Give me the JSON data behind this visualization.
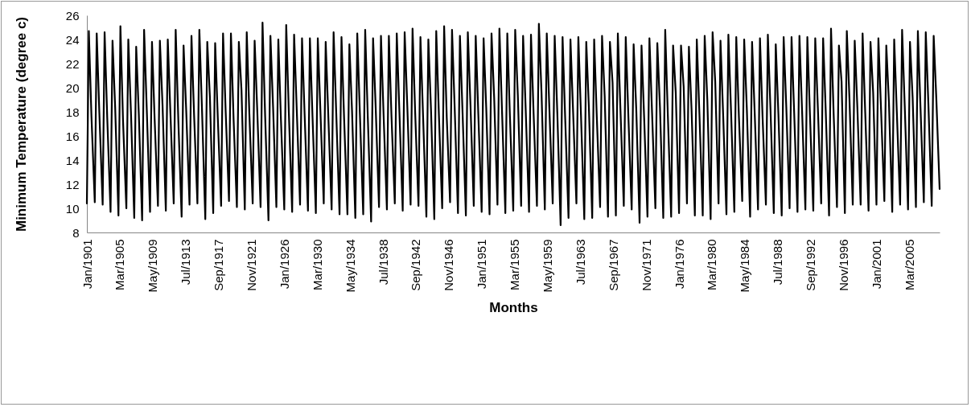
{
  "chart_data": {
    "type": "line",
    "xlabel": "Months",
    "ylabel": "Minimum Temperature (degree c)",
    "xlim": [
      "1901-01",
      "2009-01"
    ],
    "xticks": [
      {
        "value": "1901-01",
        "label": "Jan/1901"
      },
      {
        "value": "1905-03",
        "label": "Mar/1905"
      },
      {
        "value": "1909-05",
        "label": "May/1909"
      },
      {
        "value": "1913-07",
        "label": "Jul/1913"
      },
      {
        "value": "1917-09",
        "label": "Sep/1917"
      },
      {
        "value": "1921-11",
        "label": "Nov/1921"
      },
      {
        "value": "1926-01",
        "label": "Jan/1926"
      },
      {
        "value": "1930-03",
        "label": "Mar/1930"
      },
      {
        "value": "1934-05",
        "label": "May/1934"
      },
      {
        "value": "1938-07",
        "label": "Jul/1938"
      },
      {
        "value": "1942-09",
        "label": "Sep/1942"
      },
      {
        "value": "1946-11",
        "label": "Nov/1946"
      },
      {
        "value": "1951-01",
        "label": "Jan/1951"
      },
      {
        "value": "1955-03",
        "label": "Mar/1955"
      },
      {
        "value": "1959-05",
        "label": "May/1959"
      },
      {
        "value": "1963-07",
        "label": "Jul/1963"
      },
      {
        "value": "1967-09",
        "label": "Sep/1967"
      },
      {
        "value": "1971-11",
        "label": "Nov/1971"
      },
      {
        "value": "1976-01",
        "label": "Jan/1976"
      },
      {
        "value": "1980-03",
        "label": "Mar/1980"
      },
      {
        "value": "1984-05",
        "label": "May/1984"
      },
      {
        "value": "1988-07",
        "label": "Jul/1988"
      },
      {
        "value": "1992-09",
        "label": "Sep/1992"
      },
      {
        "value": "1996-11",
        "label": "Nov/1996"
      },
      {
        "value": "2001-01",
        "label": "Jan/2001"
      },
      {
        "value": "2005-03",
        "label": "Mar/2005"
      }
    ],
    "ylim": [
      8,
      26
    ],
    "yticks": [
      8,
      10,
      12,
      14,
      16,
      18,
      20,
      22,
      24,
      26
    ],
    "x": [
      "1901-01",
      "1901-04",
      "1901-08",
      "1902-01",
      "1902-04",
      "1902-08",
      "1903-01",
      "1903-04",
      "1903-08",
      "1904-01",
      "1904-04",
      "1904-08",
      "1905-01",
      "1905-04",
      "1905-08",
      "1906-01",
      "1906-04",
      "1906-08",
      "1907-01",
      "1907-04",
      "1907-08",
      "1908-01",
      "1908-04",
      "1908-08",
      "1909-01",
      "1909-04",
      "1909-08",
      "1910-01",
      "1910-04",
      "1910-08",
      "1911-01",
      "1911-04",
      "1911-08",
      "1912-01",
      "1912-04",
      "1912-08",
      "1913-01",
      "1913-04",
      "1913-08",
      "1914-01",
      "1914-04",
      "1914-08",
      "1915-01",
      "1915-04",
      "1915-08",
      "1916-01",
      "1916-04",
      "1916-08",
      "1917-01",
      "1917-04",
      "1917-08",
      "1918-01",
      "1918-04",
      "1918-08",
      "1919-01",
      "1919-04",
      "1919-08",
      "1920-01",
      "1920-04",
      "1920-08",
      "1921-01",
      "1921-04",
      "1921-08",
      "1922-01",
      "1922-04",
      "1922-08",
      "1923-01",
      "1923-04",
      "1923-08",
      "1924-01",
      "1924-04",
      "1924-08",
      "1925-01",
      "1925-04",
      "1925-08",
      "1926-01",
      "1926-04",
      "1926-08",
      "1927-01",
      "1927-04",
      "1927-08",
      "1928-01",
      "1928-04",
      "1928-08",
      "1929-01",
      "1929-04",
      "1929-08",
      "1930-01",
      "1930-04",
      "1930-08",
      "1931-01",
      "1931-04",
      "1931-08",
      "1932-01",
      "1932-04",
      "1932-08",
      "1933-01",
      "1933-04",
      "1933-08",
      "1934-01",
      "1934-04",
      "1934-08",
      "1935-01",
      "1935-04",
      "1935-08",
      "1936-01",
      "1936-04",
      "1936-08",
      "1937-01",
      "1937-04",
      "1937-08",
      "1938-01",
      "1938-04",
      "1938-08",
      "1939-01",
      "1939-04",
      "1939-08",
      "1940-01",
      "1940-04",
      "1940-08",
      "1941-01",
      "1941-04",
      "1941-08",
      "1942-01",
      "1942-04",
      "1942-08",
      "1943-01",
      "1943-04",
      "1943-08",
      "1944-01",
      "1944-04",
      "1944-08",
      "1945-01",
      "1945-04",
      "1945-08",
      "1946-01",
      "1946-04",
      "1946-08",
      "1947-01",
      "1947-04",
      "1947-08",
      "1948-01",
      "1948-04",
      "1948-08",
      "1949-01",
      "1949-04",
      "1949-08",
      "1950-01",
      "1950-04",
      "1950-08",
      "1951-01",
      "1951-04",
      "1951-08",
      "1952-01",
      "1952-04",
      "1952-08",
      "1953-01",
      "1953-04",
      "1953-08",
      "1954-01",
      "1954-04",
      "1954-08",
      "1955-01",
      "1955-04",
      "1955-08",
      "1956-01",
      "1956-04",
      "1956-08",
      "1957-01",
      "1957-04",
      "1957-08",
      "1958-01",
      "1958-04",
      "1958-08",
      "1959-01",
      "1959-04",
      "1959-08",
      "1960-01",
      "1960-04",
      "1960-08",
      "1961-01",
      "1961-04",
      "1961-08",
      "1962-01",
      "1962-04",
      "1962-08",
      "1963-01",
      "1963-04",
      "1963-08",
      "1964-01",
      "1964-04",
      "1964-08",
      "1965-01",
      "1965-04",
      "1965-08",
      "1966-01",
      "1966-04",
      "1966-08",
      "1967-01",
      "1967-04",
      "1967-08",
      "1968-01",
      "1968-04",
      "1968-08",
      "1969-01",
      "1969-04",
      "1969-08",
      "1970-01",
      "1970-04",
      "1970-08",
      "1971-01",
      "1971-04",
      "1971-08",
      "1972-01",
      "1972-04",
      "1972-08",
      "1973-01",
      "1973-04",
      "1973-08",
      "1974-01",
      "1974-04",
      "1974-08",
      "1975-01",
      "1975-04",
      "1975-08",
      "1976-01",
      "1976-04",
      "1976-08",
      "1977-01",
      "1977-04",
      "1977-08",
      "1978-01",
      "1978-04",
      "1978-08",
      "1979-01",
      "1979-04",
      "1979-08",
      "1980-01",
      "1980-04",
      "1980-08",
      "1981-01",
      "1981-04",
      "1981-08",
      "1982-01",
      "1982-04",
      "1982-08",
      "1983-01",
      "1983-04",
      "1983-08",
      "1984-01",
      "1984-04",
      "1984-08",
      "1985-01",
      "1985-04",
      "1985-08",
      "1986-01",
      "1986-04",
      "1986-08",
      "1987-01",
      "1987-04",
      "1987-08",
      "1988-01",
      "1988-04",
      "1988-08",
      "1989-01",
      "1989-04",
      "1989-08",
      "1990-01",
      "1990-04",
      "1990-08",
      "1991-01",
      "1991-04",
      "1991-08",
      "1992-01",
      "1992-04",
      "1992-08",
      "1993-01",
      "1993-04",
      "1993-08",
      "1994-01",
      "1994-04",
      "1994-08",
      "1995-01",
      "1995-04",
      "1995-08",
      "1996-01",
      "1996-04",
      "1996-08",
      "1997-01",
      "1997-04",
      "1997-08",
      "1998-01",
      "1998-04",
      "1998-08",
      "1999-01",
      "1999-04",
      "1999-08",
      "2000-01",
      "2000-04",
      "2000-08",
      "2001-01",
      "2001-04",
      "2001-08",
      "2002-01",
      "2002-04",
      "2002-08",
      "2003-01",
      "2003-04",
      "2003-08",
      "2004-01",
      "2004-04",
      "2004-08",
      "2005-01",
      "2005-04",
      "2005-08",
      "2006-01",
      "2006-04",
      "2006-08",
      "2007-01",
      "2007-04",
      "2007-08",
      "2008-01",
      "2008-04",
      "2008-08",
      "2009-01"
    ],
    "series": [
      {
        "color": "#000000",
        "values": [
          10.4,
          24.7,
          17.6,
          10.5,
          24.5,
          17.9,
          10.3,
          24.6,
          17.5,
          9.7,
          23.9,
          18.4,
          9.4,
          25.1,
          17.2,
          10.0,
          24.0,
          18.0,
          9.2,
          23.4,
          17.8,
          9.0,
          24.8,
          18.3,
          9.7,
          23.8,
          17.4,
          10.2,
          23.9,
          18.6,
          9.8,
          24.0,
          17.9,
          10.4,
          24.8,
          17.3,
          9.3,
          23.5,
          18.1,
          10.3,
          24.3,
          17.7,
          10.4,
          24.8,
          18.2,
          9.1,
          23.8,
          19.2,
          9.6,
          23.7,
          17.5,
          10.2,
          24.5,
          18.0,
          10.6,
          24.5,
          17.4,
          10.1,
          23.8,
          19.8,
          9.9,
          24.6,
          17.8,
          10.4,
          23.9,
          18.1,
          10.1,
          25.4,
          17.6,
          9.0,
          24.3,
          18.4,
          10.1,
          24.0,
          17.3,
          9.9,
          25.2,
          17.9,
          9.7,
          24.4,
          18.2,
          10.3,
          24.1,
          17.7,
          9.8,
          24.1,
          17.5,
          9.6,
          24.1,
          18.0,
          10.4,
          23.8,
          17.6,
          9.9,
          24.6,
          17.9,
          9.5,
          24.2,
          17.4,
          9.5,
          23.6,
          18.1,
          9.2,
          24.5,
          17.8,
          9.5,
          24.8,
          17.5,
          8.9,
          24.1,
          18.3,
          10.1,
          24.3,
          17.7,
          9.9,
          24.3,
          17.6,
          10.4,
          24.5,
          18.0,
          9.8,
          24.6,
          18.5,
          10.3,
          24.9,
          17.9,
          10.2,
          24.2,
          17.6,
          9.3,
          24.0,
          18.2,
          9.1,
          24.7,
          17.8,
          10.0,
          25.1,
          17.5,
          10.5,
          24.8,
          18.4,
          9.6,
          24.3,
          17.9,
          9.4,
          24.6,
          18.6,
          10.2,
          24.3,
          17.7,
          9.7,
          24.1,
          18.3,
          9.5,
          24.5,
          19.2,
          10.3,
          24.9,
          18.0,
          9.6,
          24.5,
          17.6,
          9.8,
          24.8,
          19.4,
          10.2,
          24.3,
          18.1,
          9.7,
          24.4,
          17.8,
          10.2,
          25.3,
          19.6,
          9.9,
          24.5,
          18.2,
          10.4,
          24.3,
          17.9,
          8.6,
          24.2,
          17.4,
          9.2,
          24.0,
          18.0,
          10.4,
          24.2,
          17.7,
          9.1,
          23.8,
          18.3,
          9.2,
          24.0,
          17.6,
          10.1,
          24.3,
          19.3,
          9.3,
          23.8,
          20.4,
          9.4,
          24.5,
          18.1,
          10.2,
          24.2,
          17.6,
          9.9,
          23.6,
          18.2,
          8.8,
          23.5,
          17.5,
          9.3,
          24.1,
          17.9,
          10.0,
          23.7,
          18.4,
          9.2,
          24.8,
          17.7,
          9.3,
          23.5,
          19.6,
          9.6,
          23.5,
          20.1,
          10.4,
          23.4,
          18.2,
          9.4,
          24.0,
          17.8,
          9.4,
          24.3,
          19.0,
          9.1,
          24.6,
          20.5,
          10.4,
          23.9,
          17.8,
          9.5,
          24.4,
          18.1,
          9.7,
          24.2,
          17.6,
          10.6,
          24.0,
          18.3,
          9.3,
          23.8,
          17.9,
          9.9,
          24.1,
          17.5,
          10.3,
          24.4,
          18.2,
          9.6,
          23.6,
          17.8,
          9.4,
          24.2,
          18.4,
          10.0,
          24.2,
          17.9,
          9.7,
          24.3,
          18.1,
          9.9,
          24.2,
          17.7,
          9.8,
          24.1,
          18.3,
          10.4,
          24.1,
          18.0,
          9.4,
          24.9,
          17.8,
          10.1,
          23.5,
          20.5,
          9.6,
          24.7,
          19.1,
          10.3,
          23.9,
          18.4,
          10.3,
          24.5,
          17.9,
          9.8,
          23.8,
          19.6,
          10.3,
          24.1,
          18.2,
          10.6,
          23.5,
          18.8,
          9.7,
          24.0,
          18.0,
          10.3,
          24.8,
          18.5,
          9.9,
          23.8,
          19.2,
          10.1,
          24.7,
          18.3,
          10.5,
          24.6,
          18.6,
          10.2,
          24.3,
          19.1,
          11.6
        ]
      }
    ]
  }
}
